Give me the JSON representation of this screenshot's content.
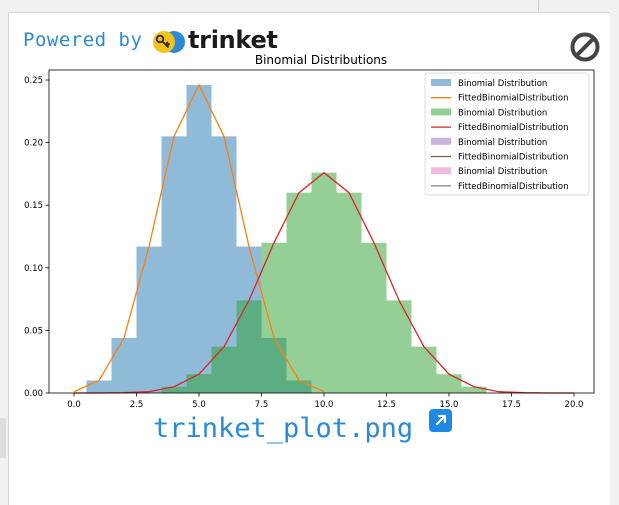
{
  "header": {
    "powered_by": "Powered by",
    "brand": "trinket"
  },
  "icons": {
    "logo": "trinket-logo-icon",
    "block": "no-entry-icon",
    "open_external": "open-external-icon"
  },
  "output": {
    "filename": "trinket_plot.png"
  },
  "colors": {
    "accent": "#2b8ad8",
    "series_blue": "#1f77b4",
    "series_orange": "#ff7f0e",
    "series_green": "#2ca02c",
    "series_red": "#d62728",
    "series_purple": "#9467bd",
    "series_brown": "#8c564b",
    "series_pink": "#e377c2",
    "series_gray": "#7f7f7f"
  },
  "chart_data": {
    "type": "bar",
    "title": "Binomial Distributions",
    "xlabel": "",
    "ylabel": "",
    "xlim": [
      -1,
      20.8
    ],
    "ylim": [
      0,
      0.258
    ],
    "xticks": [
      "0.0",
      "2.5",
      "5.0",
      "7.5",
      "10.0",
      "12.5",
      "15.0",
      "17.5",
      "20.0"
    ],
    "yticks": [
      "0.00",
      "0.05",
      "0.10",
      "0.15",
      "0.20",
      "0.25"
    ],
    "grid": false,
    "legend_position": "top-right",
    "legend": [
      "Binomial Distribution",
      "FittedBinomialDistribution",
      "Binomial Distribution",
      "FittedBinomialDistribution",
      "Binomial Distribution",
      "FittedBinomialDistribution",
      "Binomial Distribution",
      "FittedBinomialDistribution"
    ],
    "bars": [
      {
        "name": "Binomial Distribution",
        "x": [
          1,
          2,
          3,
          4,
          5,
          6,
          7,
          8,
          9
        ],
        "values": [
          0.01,
          0.044,
          0.117,
          0.205,
          0.246,
          0.205,
          0.117,
          0.044,
          0.01
        ]
      },
      {
        "name": "Binomial Distribution",
        "x": [
          4,
          5,
          6,
          7,
          8,
          9,
          10,
          11,
          12,
          13,
          14,
          15,
          16
        ],
        "values": [
          0.005,
          0.015,
          0.037,
          0.074,
          0.12,
          0.16,
          0.176,
          0.16,
          0.12,
          0.074,
          0.037,
          0.015,
          0.005
        ]
      }
    ],
    "lines": [
      {
        "name": "FittedBinomialDistribution",
        "x": [
          0,
          1,
          2,
          3,
          4,
          5,
          6,
          7,
          8,
          9,
          10
        ],
        "values": [
          0.001,
          0.01,
          0.044,
          0.117,
          0.205,
          0.246,
          0.205,
          0.117,
          0.044,
          0.01,
          0.001
        ]
      },
      {
        "name": "FittedBinomialDistribution",
        "x": [
          0,
          1,
          2,
          3,
          4,
          5,
          6,
          7,
          8,
          9,
          10,
          11,
          12,
          13,
          14,
          15,
          16,
          17,
          18,
          19,
          20
        ],
        "values": [
          0,
          0,
          0.0002,
          0.001,
          0.005,
          0.015,
          0.037,
          0.074,
          0.12,
          0.16,
          0.176,
          0.16,
          0.12,
          0.074,
          0.037,
          0.015,
          0.005,
          0.001,
          0.0002,
          0,
          0
        ]
      }
    ]
  }
}
